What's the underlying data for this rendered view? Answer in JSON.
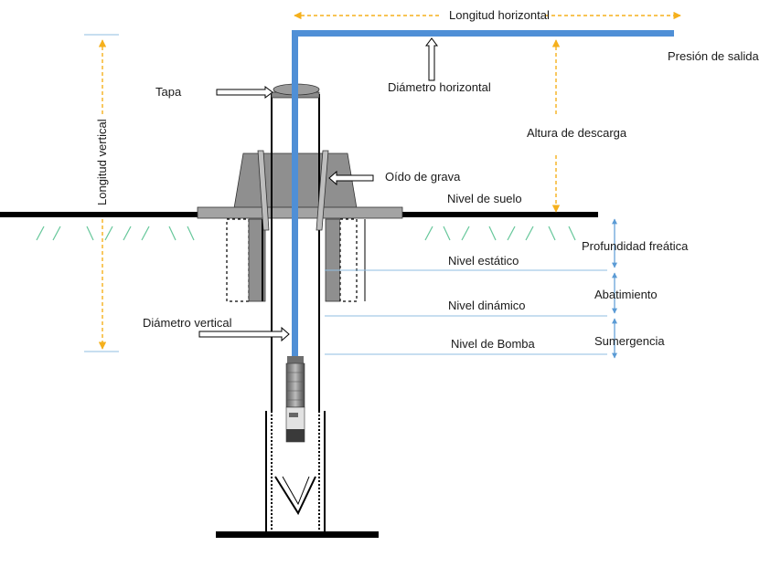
{
  "labels": {
    "longitud_horizontal": "Longitud horizontal",
    "presion_salida": "Presión de salida",
    "tapa": "Tapa",
    "diametro_horizontal": "Diámetro horizontal",
    "altura_descarga": "Altura de descarga",
    "longitud_vertical": "Longitud vertical",
    "oido_grava": "Oído de grava",
    "nivel_suelo": "Nivel de suelo",
    "profundidad_freatica": "Profundidad freática",
    "nivel_estatico": "Nivel estático",
    "abatimiento": "Abatimiento",
    "nivel_dinamico": "Nivel dinámico",
    "diametro_vertical": "Diámetro vertical",
    "sumergencia": "Sumergencia",
    "nivel_bomba": "Nivel de Bomba"
  },
  "colors": {
    "pipe_blue": "#4f8fd6",
    "dim_orange": "#f5b01c",
    "dim_blue": "#5b9bd5",
    "gray_block": "#8f8f8f",
    "ground": "#000000",
    "grass": "#66c79a"
  }
}
